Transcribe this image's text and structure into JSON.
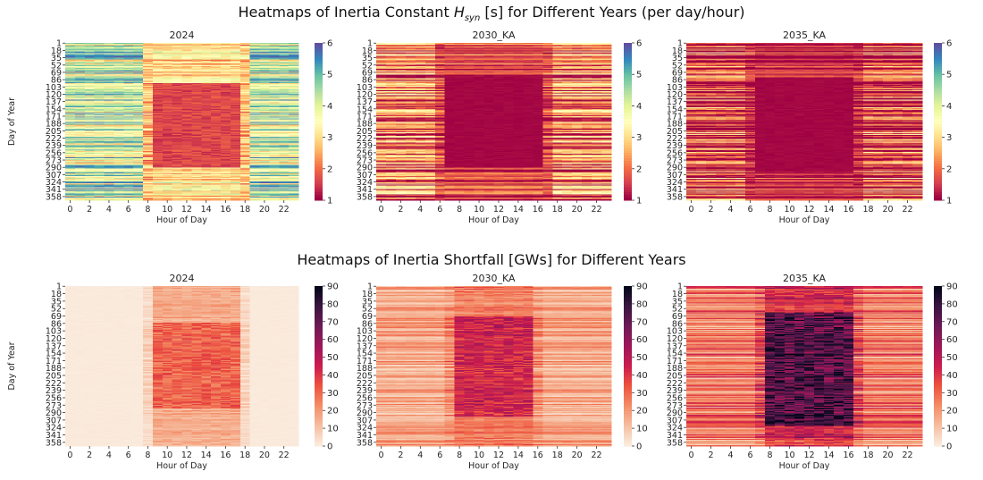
{
  "figure": {
    "suptitle_top_prefix": "Heatmaps of Inertia Constant ",
    "suptitle_top_symbol": "H",
    "suptitle_top_subscript": "syn",
    "suptitle_top_suffix": " [s] for Different Years (per day/hour)",
    "suptitle_bottom": "Heatmaps of Inertia Shortfall [GWs] for Different Years"
  },
  "chart_data": [
    {
      "type": "heatmap",
      "row": "top",
      "title": "2024",
      "xlabel": "Hour of Day",
      "ylabel": "Day of Year",
      "colormap": "Spectral",
      "vmin": 1,
      "vmax": 6,
      "colorbar_ticks": [
        1,
        2,
        3,
        4,
        5,
        6
      ],
      "scenario": "2024",
      "metric": "inertia_constant"
    },
    {
      "type": "heatmap",
      "row": "top",
      "title": "2030_KA",
      "xlabel": "Hour of Day",
      "ylabel": "",
      "colormap": "Spectral",
      "vmin": 1,
      "vmax": 6,
      "colorbar_ticks": [
        1,
        2,
        3,
        4,
        5,
        6
      ],
      "scenario": "2030_KA",
      "metric": "inertia_constant"
    },
    {
      "type": "heatmap",
      "row": "top",
      "title": "2035_KA",
      "xlabel": "Hour of Day",
      "ylabel": "",
      "colormap": "Spectral",
      "vmin": 1,
      "vmax": 6,
      "colorbar_ticks": [
        1,
        2,
        3,
        4,
        5,
        6
      ],
      "scenario": "2035_KA",
      "metric": "inertia_constant"
    },
    {
      "type": "heatmap",
      "row": "bottom",
      "title": "2024",
      "xlabel": "Hour of Day",
      "ylabel": "Day of Year",
      "colormap": "rocket_r",
      "vmin": 0,
      "vmax": 90,
      "colorbar_ticks": [
        0,
        10,
        20,
        30,
        40,
        50,
        60,
        70,
        80,
        90
      ],
      "scenario": "2024",
      "metric": "inertia_shortfall"
    },
    {
      "type": "heatmap",
      "row": "bottom",
      "title": "2030_KA",
      "xlabel": "Hour of Day",
      "ylabel": "",
      "colormap": "rocket_r",
      "vmin": 0,
      "vmax": 90,
      "colorbar_ticks": [
        0,
        10,
        20,
        30,
        40,
        50,
        60,
        70,
        80,
        90
      ],
      "scenario": "2030_KA",
      "metric": "inertia_shortfall"
    },
    {
      "type": "heatmap",
      "row": "bottom",
      "title": "2035_KA",
      "xlabel": "Hour of Day",
      "ylabel": "",
      "colormap": "rocket_r",
      "vmin": 0,
      "vmax": 90,
      "colorbar_ticks": [
        0,
        10,
        20,
        30,
        40,
        50,
        60,
        70,
        80,
        90
      ],
      "scenario": "2035_KA",
      "metric": "inertia_shortfall"
    }
  ],
  "axes_common": {
    "x_ticks": [
      0,
      2,
      4,
      6,
      8,
      10,
      12,
      14,
      16,
      18,
      20,
      22
    ],
    "x_range": [
      0,
      23
    ],
    "y_ticks": [
      1,
      18,
      35,
      52,
      69,
      86,
      103,
      120,
      137,
      154,
      171,
      188,
      205,
      222,
      239,
      256,
      273,
      290,
      307,
      324,
      341,
      358
    ],
    "y_range": [
      1,
      366
    ]
  },
  "patterns": {
    "inertia_constant": {
      "2024": {
        "night_level": 4.2,
        "midday_min": 1.3,
        "midday_hours": [
          9,
          17
        ],
        "summer_days": [
          95,
          290
        ]
      },
      "2030_KA": {
        "night_level": 2.2,
        "midday_min": 1.0,
        "midday_hours": [
          7,
          16
        ],
        "summer_days": [
          80,
          290
        ]
      },
      "2035_KA": {
        "night_level": 1.8,
        "midday_min": 1.0,
        "midday_hours": [
          7,
          16
        ],
        "summer_days": [
          80,
          300
        ]
      }
    },
    "inertia_shortfall": {
      "2024": {
        "night_level": 0.5,
        "midday_max": 35,
        "midday_hours": [
          9,
          17
        ],
        "summer_days": [
          85,
          280
        ]
      },
      "2030_KA": {
        "night_level": 15,
        "midday_max": 45,
        "midday_hours": [
          8,
          15
        ],
        "summer_days": [
          70,
          300
        ]
      },
      "2035_KA": {
        "night_level": 25,
        "midday_max": 75,
        "midday_hours": [
          8,
          16
        ],
        "summer_days": [
          60,
          320
        ]
      }
    }
  }
}
